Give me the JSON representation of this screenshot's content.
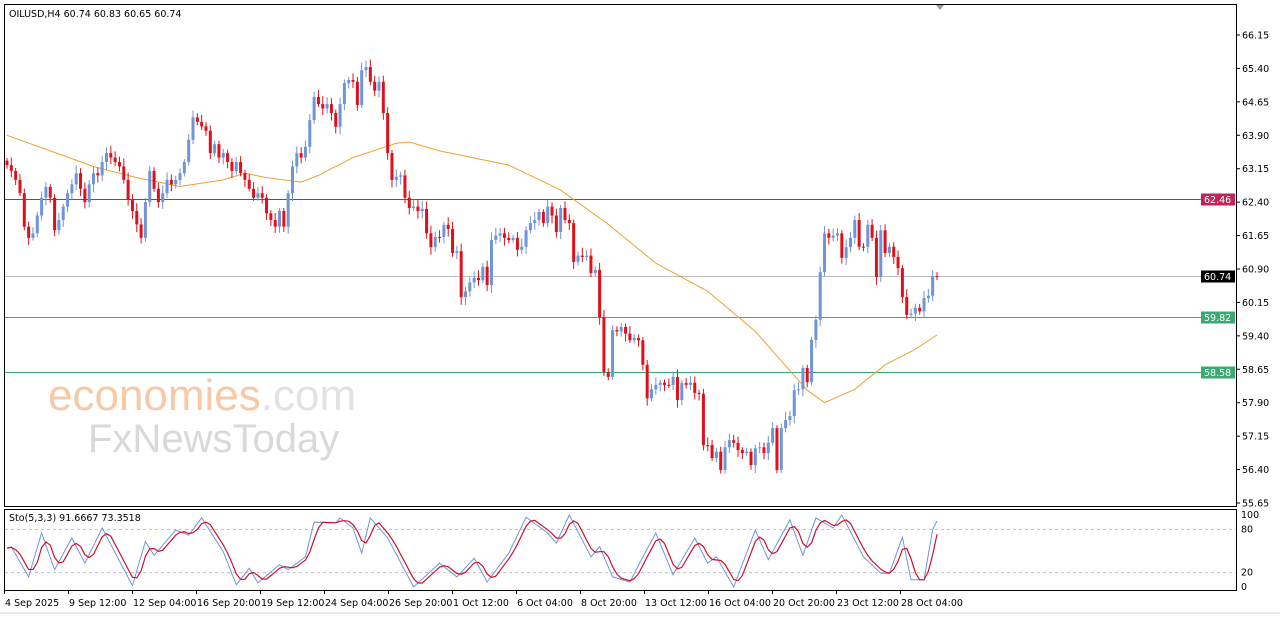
{
  "header": {
    "symbol_info": "OILUSD,H4  60.74 60.83 60.65 60.74"
  },
  "indicator": {
    "label": "Sto(5,3,3) 91.6667 73.3518"
  },
  "watermark": {
    "line1": "economies",
    "line1_suffix": ".com",
    "line2": "FxNewsToday"
  },
  "colors": {
    "bull": "#6f95d9",
    "bear": "#e0101a",
    "ma": "#f0a030",
    "resistance": "#c0245a",
    "support": "#3aaa72",
    "current": "#c0c0c0",
    "stoch_k": "#6f95d9",
    "stoch_d": "#d0102a"
  },
  "chart_data": {
    "type": "candlestick",
    "symbol": "OILUSD",
    "timeframe": "H4",
    "ylim": [
      55.65,
      66.15
    ],
    "y_ticks": [
      "66.15",
      "65.40",
      "64.65",
      "63.90",
      "63.15",
      "62.40",
      "61.65",
      "60.90",
      "60.15",
      "59.40",
      "58.65",
      "57.90",
      "57.15",
      "56.40",
      "55.65"
    ],
    "x_ticks": [
      "4 Sep 2025",
      "9 Sep 12:00",
      "12 Sep 04:00",
      "16 Sep 20:00",
      "19 Sep 12:00",
      "24 Sep 04:00",
      "26 Sep 20:00",
      "1 Oct 12:00",
      "6 Oct 04:00",
      "8 Oct 20:00",
      "13 Oct 12:00",
      "16 Oct 04:00",
      "20 Oct 20:00",
      "23 Oct 12:00",
      "28 Oct 04:00"
    ],
    "last_bar": {
      "open": 60.74,
      "high": 60.83,
      "low": 60.65,
      "close": 60.74
    },
    "closes": [
      63.23,
      63.1,
      62.9,
      62.6,
      61.85,
      61.6,
      61.7,
      62.1,
      62.5,
      62.74,
      62.5,
      61.77,
      62.0,
      62.3,
      62.6,
      62.8,
      63.05,
      62.7,
      62.4,
      62.8,
      63.05,
      63.0,
      63.3,
      63.5,
      63.4,
      63.3,
      63.2,
      62.9,
      62.45,
      62.2,
      61.9,
      61.6,
      62.4,
      63.1,
      62.7,
      62.4,
      62.6,
      62.9,
      62.8,
      62.9,
      63.05,
      63.3,
      63.8,
      64.3,
      64.2,
      64.1,
      64.0,
      63.5,
      63.7,
      63.4,
      63.5,
      63.3,
      63.1,
      63.3,
      63.05,
      62.9,
      62.7,
      62.5,
      62.6,
      62.5,
      62.15,
      62.0,
      61.85,
      62.2,
      61.85,
      62.6,
      63.2,
      63.5,
      63.4,
      63.64,
      64.24,
      64.76,
      64.6,
      64.5,
      64.6,
      64.4,
      64.09,
      64.6,
      65.07,
      65.14,
      65.1,
      64.58,
      65.36,
      65.43,
      65.1,
      64.9,
      65.1,
      64.4,
      63.5,
      62.9,
      62.97,
      63.0,
      62.5,
      62.27,
      62.3,
      62.2,
      62.25,
      61.7,
      61.39,
      61.62,
      61.62,
      61.89,
      61.8,
      61.26,
      61.3,
      60.27,
      60.4,
      60.6,
      60.7,
      60.65,
      60.95,
      60.54,
      61.55,
      61.65,
      61.7,
      61.6,
      61.55,
      61.6,
      61.33,
      61.4,
      61.77,
      61.93,
      62.0,
      62.18,
      61.93,
      62.3,
      62.1,
      61.73,
      62.27,
      62.0,
      61.93,
      61.06,
      61.2,
      61.17,
      61.2,
      60.81,
      60.88,
      59.82,
      58.59,
      58.48,
      59.53,
      59.5,
      59.6,
      59.45,
      59.3,
      59.35,
      59.3,
      58.75,
      58.0,
      58.2,
      58.3,
      58.35,
      58.3,
      58.3,
      58.48,
      57.96,
      58.34,
      58.3,
      58.35,
      58.12,
      58.1,
      56.95,
      56.95,
      56.66,
      56.8,
      56.39,
      56.9,
      57.06,
      57.0,
      56.84,
      56.77,
      56.8,
      56.5,
      56.88,
      56.9,
      56.77,
      57.0,
      57.33,
      56.39,
      57.33,
      57.51,
      57.6,
      58.18,
      58.2,
      58.68,
      58.36,
      59.31,
      59.76,
      60.83,
      61.7,
      61.6,
      61.65,
      61.7,
      61.15,
      61.39,
      61.6,
      62.0,
      61.4,
      61.4,
      61.89,
      61.6,
      60.72,
      61.77,
      61.26,
      61.4,
      61.17,
      60.92,
      60.27,
      59.87,
      59.9,
      60.03,
      59.95,
      60.25,
      60.3,
      60.74,
      60.74
    ],
    "moving_average": [
      [
        0,
        63.9
      ],
      [
        10,
        63.55
      ],
      [
        20,
        63.2
      ],
      [
        30,
        62.95
      ],
      [
        40,
        62.75
      ],
      [
        50,
        62.9
      ],
      [
        55,
        63.05
      ],
      [
        60,
        62.95
      ],
      [
        68,
        62.85
      ],
      [
        72,
        63.0
      ],
      [
        80,
        63.4
      ],
      [
        90,
        63.72
      ],
      [
        93,
        63.75
      ],
      [
        100,
        63.55
      ],
      [
        110,
        63.35
      ],
      [
        116,
        63.23
      ],
      [
        128,
        62.67
      ],
      [
        139,
        61.9
      ],
      [
        150,
        61.03
      ],
      [
        162,
        60.4
      ],
      [
        173,
        59.5
      ],
      [
        185,
        58.18
      ],
      [
        189,
        57.9
      ],
      [
        196,
        58.2
      ],
      [
        203,
        58.75
      ],
      [
        210,
        59.1
      ],
      [
        215,
        59.42
      ]
    ],
    "levels": [
      {
        "label": "62.46",
        "value": 62.46,
        "kind": "resistance"
      },
      {
        "label": "60.74",
        "value": 60.74,
        "kind": "current"
      },
      {
        "label": "59.82",
        "value": 59.82,
        "kind": "support"
      },
      {
        "label": "58.58",
        "value": 58.58,
        "kind": "support"
      }
    ],
    "stochastic": {
      "params": "5,3,3",
      "k_last": 91.6667,
      "d_last": 73.3518,
      "ylim": [
        0,
        100
      ],
      "levels": [
        20,
        80
      ],
      "y_ticks": [
        "100",
        "80",
        "20",
        "0"
      ],
      "k": [
        [
          0,
          54
        ],
        [
          1,
          56
        ],
        [
          5,
          14
        ],
        [
          8,
          75
        ],
        [
          11,
          24
        ],
        [
          15,
          68
        ],
        [
          18,
          33
        ],
        [
          22,
          82
        ],
        [
          29,
          2
        ],
        [
          32,
          63
        ],
        [
          34,
          44
        ],
        [
          39,
          79
        ],
        [
          42,
          72
        ],
        [
          45,
          96
        ],
        [
          50,
          49
        ],
        [
          53,
          3
        ],
        [
          56,
          26
        ],
        [
          58,
          6
        ],
        [
          63,
          31
        ],
        [
          65,
          24
        ],
        [
          69,
          42
        ],
        [
          71,
          90
        ],
        [
          76,
          89
        ],
        [
          77,
          96
        ],
        [
          80,
          82
        ],
        [
          82,
          47
        ],
        [
          84,
          96
        ],
        [
          88,
          68
        ],
        [
          94,
          0
        ],
        [
          100,
          33
        ],
        [
          104,
          14
        ],
        [
          108,
          40
        ],
        [
          111,
          7
        ],
        [
          116,
          47
        ],
        [
          120,
          97
        ],
        [
          125,
          75
        ],
        [
          127,
          61
        ],
        [
          130,
          100
        ],
        [
          135,
          42
        ],
        [
          137,
          56
        ],
        [
          140,
          14
        ],
        [
          144,
          7
        ],
        [
          147,
          42
        ],
        [
          150,
          75
        ],
        [
          154,
          17
        ],
        [
          159,
          68
        ],
        [
          162,
          33
        ],
        [
          164,
          42
        ],
        [
          168,
          0
        ],
        [
          173,
          79
        ],
        [
          176,
          38
        ],
        [
          181,
          93
        ],
        [
          184,
          44
        ],
        [
          187,
          96
        ],
        [
          191,
          82
        ],
        [
          193,
          100
        ],
        [
          198,
          42
        ],
        [
          202,
          19
        ],
        [
          204,
          19
        ],
        [
          207,
          69
        ],
        [
          209,
          10
        ],
        [
          212,
          10
        ],
        [
          214,
          80
        ],
        [
          215,
          91.67
        ]
      ]
    }
  }
}
